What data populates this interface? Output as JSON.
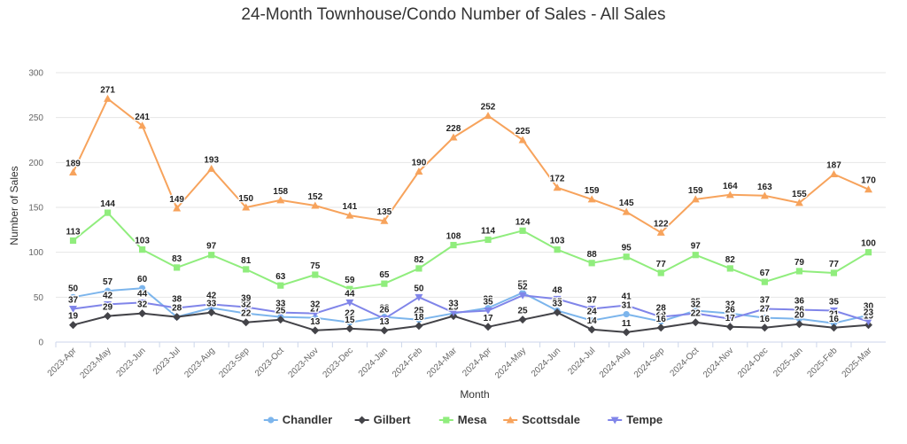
{
  "chart_data": {
    "type": "line",
    "title": "24-Month Townhouse/Condo Number of Sales - All Sales",
    "xlabel": "Month",
    "ylabel": "Number of Sales",
    "ylim": [
      0,
      300
    ],
    "yticks": [
      0,
      50,
      100,
      150,
      200,
      250,
      300
    ],
    "grid": "horizontal",
    "legend_position": "bottom",
    "categories": [
      "2023-Apr",
      "2023-May",
      "2023-Jun",
      "2023-Jul",
      "2023-Aug",
      "2023-Sep",
      "2023-Oct",
      "2023-Nov",
      "2023-Dec",
      "2024-Jan",
      "2024-Feb",
      "2024-Mar",
      "2024-Apr",
      "2024-May",
      "2024-Jun",
      "2024-Jul",
      "2024-Aug",
      "2024-Sep",
      "2024-Oct",
      "2024-Nov",
      "2024-Dec",
      "2025-Jan",
      "2025-Feb",
      "2025-Mar"
    ],
    "series": [
      {
        "name": "Chandler",
        "color": "#7cb5ec",
        "marker": "circle",
        "values": [
          50,
          57,
          60,
          28,
          38,
          32,
          28,
          27,
          22,
          28,
          25,
          32,
          38,
          55,
          35,
          24,
          31,
          23,
          35,
          32,
          27,
          26,
          21,
          30
        ]
      },
      {
        "name": "Gilbert",
        "color": "#434348",
        "marker": "diamond",
        "values": [
          19,
          29,
          32,
          28,
          33,
          22,
          25,
          13,
          15,
          13,
          18,
          29,
          17,
          25,
          33,
          14,
          11,
          16,
          22,
          17,
          16,
          20,
          16,
          19
        ]
      },
      {
        "name": "Mesa",
        "color": "#90ed7d",
        "marker": "square",
        "values": [
          113,
          144,
          103,
          83,
          97,
          81,
          63,
          75,
          59,
          65,
          82,
          108,
          114,
          124,
          103,
          88,
          95,
          77,
          97,
          82,
          67,
          79,
          77,
          100
        ]
      },
      {
        "name": "Scottsdale",
        "color": "#f7a35c",
        "marker": "triangle",
        "values": [
          189,
          271,
          241,
          149,
          193,
          150,
          158,
          152,
          141,
          135,
          190,
          228,
          252,
          225,
          172,
          159,
          145,
          122,
          159,
          164,
          163,
          155,
          187,
          170
        ]
      },
      {
        "name": "Tempe",
        "color": "#8085e9",
        "marker": "triangle-down",
        "values": [
          37,
          42,
          44,
          38,
          42,
          39,
          33,
          32,
          44,
          26,
          50,
          33,
          35,
          52,
          48,
          37,
          41,
          28,
          32,
          26,
          37,
          36,
          35,
          23
        ]
      }
    ]
  }
}
